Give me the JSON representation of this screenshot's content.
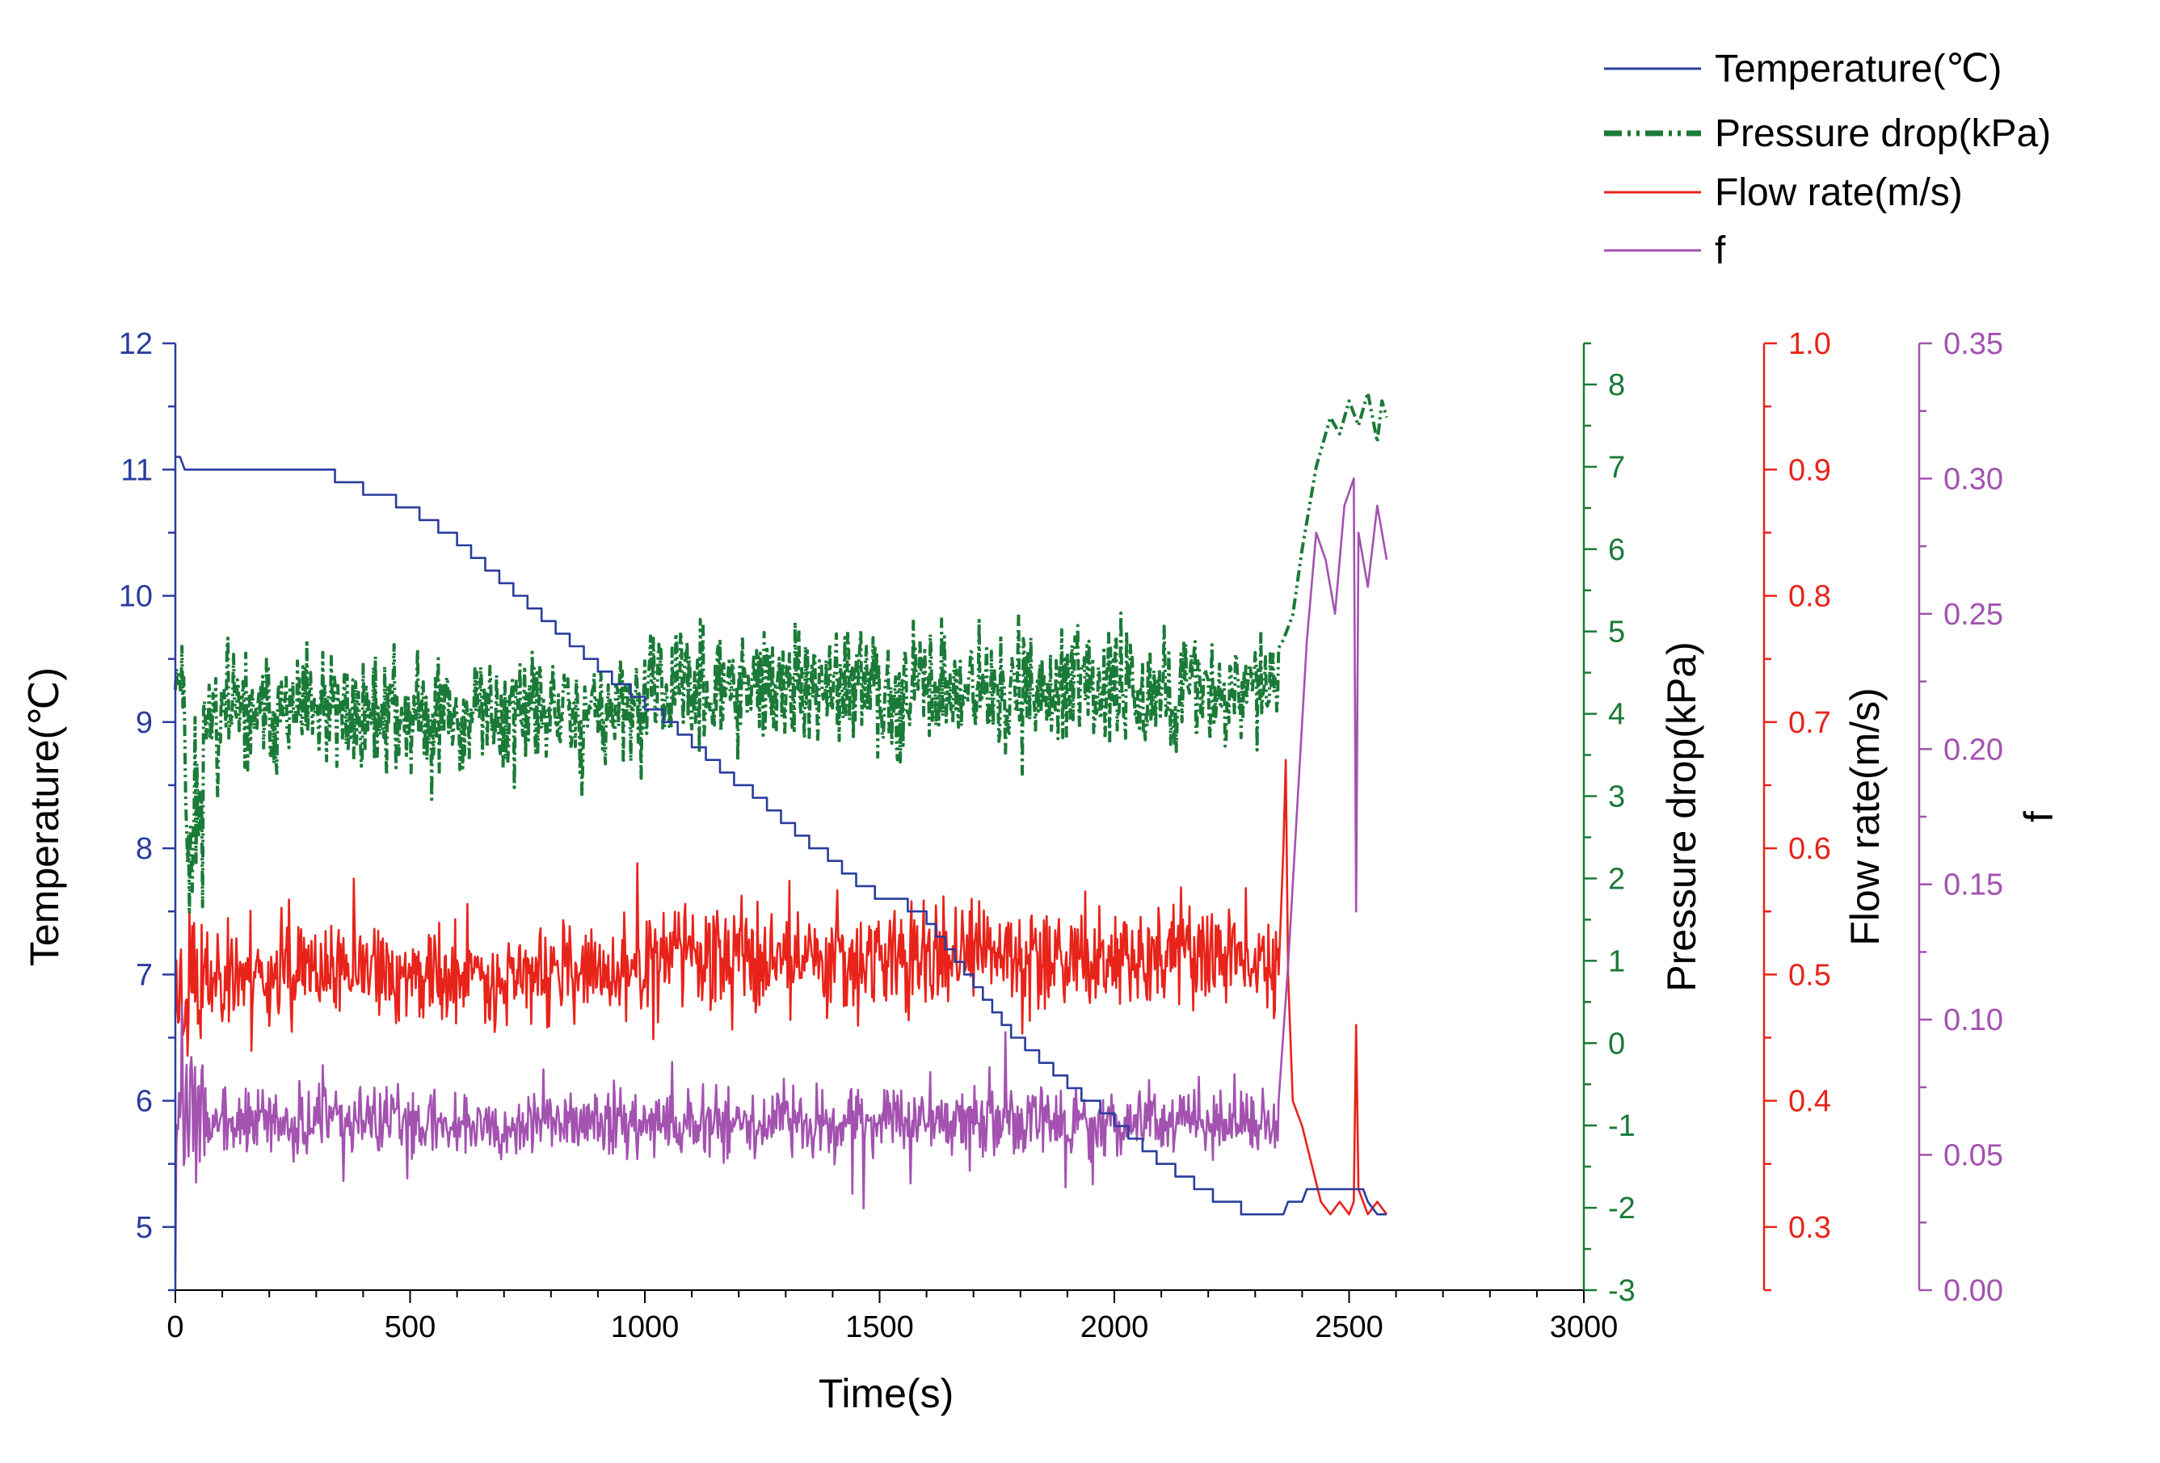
{
  "chart_data": {
    "type": "line",
    "x": {
      "label": "Time(s)",
      "range": [
        0,
        3000
      ],
      "ticks": [
        0,
        500,
        1000,
        1500,
        2000,
        2500,
        3000
      ]
    },
    "axes": [
      {
        "key": "temp",
        "label": "Temperature(℃)",
        "position": "left",
        "color": "#2a3d9e",
        "range": [
          4.5,
          12
        ],
        "ticks": [
          5,
          6,
          7,
          8,
          9,
          10,
          11,
          12
        ]
      },
      {
        "key": "dp",
        "label": "Pressure drop(kPa)",
        "position": "right-1",
        "color": "#1a7a37",
        "range": [
          -3,
          8.5
        ],
        "ticks": [
          -3,
          -2,
          -1,
          0,
          1,
          2,
          3,
          4,
          5,
          6,
          7,
          8
        ]
      },
      {
        "key": "flow",
        "label": "Flow rate(m/s)",
        "position": "right-2",
        "color": "#e8231a",
        "range": [
          0.25,
          1.0
        ],
        "ticks": [
          0.3,
          0.4,
          0.5,
          0.6,
          0.7,
          0.8,
          0.9,
          1.0
        ],
        "tick_labels": [
          "0.3",
          "0.4",
          "0.5",
          "0.6",
          "0.7",
          "0.8",
          "0.9",
          "1.0"
        ]
      },
      {
        "key": "f",
        "label": "f",
        "position": "right-3",
        "color": "#a352b0",
        "range": [
          0,
          0.35
        ],
        "ticks": [
          0,
          0.05,
          0.1,
          0.15,
          0.2,
          0.25,
          0.3,
          0.35
        ],
        "tick_labels": [
          "0.00",
          "0.05",
          "0.10",
          "0.15",
          "0.20",
          "0.25",
          "0.30",
          "0.35"
        ]
      }
    ],
    "legend": {
      "position": "top-right",
      "entries": [
        {
          "name": "Temperature(℃)",
          "color": "#2a3d9e",
          "style": "solid"
        },
        {
          "name": "Pressure drop(kPa)",
          "color": "#1a7a37",
          "style": "dash-dot-dot"
        },
        {
          "name": "Flow rate(m/s)",
          "color": "#e8231a",
          "style": "solid"
        },
        {
          "name": "f",
          "color": "#a352b0",
          "style": "solid"
        }
      ]
    },
    "series": [
      {
        "name": "Temperature(℃)",
        "axis": "temp",
        "kind": "step",
        "points": [
          [
            0,
            11.1
          ],
          [
            10,
            11.1
          ],
          [
            20,
            11.0
          ],
          [
            340,
            11.0
          ],
          [
            340,
            10.9
          ],
          [
            400,
            10.9
          ],
          [
            400,
            10.8
          ],
          [
            470,
            10.8
          ],
          [
            470,
            10.7
          ],
          [
            520,
            10.7
          ],
          [
            520,
            10.6
          ],
          [
            560,
            10.6
          ],
          [
            560,
            10.5
          ],
          [
            600,
            10.5
          ],
          [
            600,
            10.4
          ],
          [
            630,
            10.4
          ],
          [
            630,
            10.3
          ],
          [
            660,
            10.3
          ],
          [
            660,
            10.2
          ],
          [
            690,
            10.2
          ],
          [
            690,
            10.1
          ],
          [
            720,
            10.1
          ],
          [
            720,
            10.0
          ],
          [
            750,
            10.0
          ],
          [
            750,
            9.9
          ],
          [
            780,
            9.9
          ],
          [
            780,
            9.8
          ],
          [
            810,
            9.8
          ],
          [
            810,
            9.7
          ],
          [
            840,
            9.7
          ],
          [
            840,
            9.6
          ],
          [
            870,
            9.6
          ],
          [
            870,
            9.5
          ],
          [
            900,
            9.5
          ],
          [
            900,
            9.4
          ],
          [
            930,
            9.4
          ],
          [
            930,
            9.3
          ],
          [
            970,
            9.3
          ],
          [
            970,
            9.2
          ],
          [
            1000,
            9.2
          ],
          [
            1000,
            9.1
          ],
          [
            1040,
            9.1
          ],
          [
            1040,
            9.0
          ],
          [
            1070,
            9.0
          ],
          [
            1070,
            8.9
          ],
          [
            1100,
            8.9
          ],
          [
            1100,
            8.8
          ],
          [
            1130,
            8.8
          ],
          [
            1130,
            8.7
          ],
          [
            1160,
            8.7
          ],
          [
            1160,
            8.6
          ],
          [
            1190,
            8.6
          ],
          [
            1190,
            8.5
          ],
          [
            1230,
            8.5
          ],
          [
            1230,
            8.4
          ],
          [
            1260,
            8.4
          ],
          [
            1260,
            8.3
          ],
          [
            1290,
            8.3
          ],
          [
            1290,
            8.2
          ],
          [
            1320,
            8.2
          ],
          [
            1320,
            8.1
          ],
          [
            1350,
            8.1
          ],
          [
            1350,
            8.0
          ],
          [
            1390,
            8.0
          ],
          [
            1390,
            7.9
          ],
          [
            1420,
            7.9
          ],
          [
            1420,
            7.8
          ],
          [
            1450,
            7.8
          ],
          [
            1450,
            7.7
          ],
          [
            1490,
            7.7
          ],
          [
            1490,
            7.6
          ],
          [
            1560,
            7.6
          ],
          [
            1560,
            7.5
          ],
          [
            1600,
            7.5
          ],
          [
            1600,
            7.4
          ],
          [
            1620,
            7.4
          ],
          [
            1620,
            7.3
          ],
          [
            1640,
            7.3
          ],
          [
            1640,
            7.2
          ],
          [
            1660,
            7.2
          ],
          [
            1660,
            7.1
          ],
          [
            1680,
            7.1
          ],
          [
            1680,
            7.0
          ],
          [
            1700,
            7.0
          ],
          [
            1700,
            6.9
          ],
          [
            1720,
            6.9
          ],
          [
            1720,
            6.8
          ],
          [
            1740,
            6.8
          ],
          [
            1740,
            6.7
          ],
          [
            1760,
            6.7
          ],
          [
            1760,
            6.6
          ],
          [
            1780,
            6.6
          ],
          [
            1780,
            6.5
          ],
          [
            1810,
            6.5
          ],
          [
            1810,
            6.4
          ],
          [
            1840,
            6.4
          ],
          [
            1840,
            6.3
          ],
          [
            1870,
            6.3
          ],
          [
            1870,
            6.2
          ],
          [
            1900,
            6.2
          ],
          [
            1900,
            6.1
          ],
          [
            1930,
            6.1
          ],
          [
            1930,
            6.0
          ],
          [
            1970,
            6.0
          ],
          [
            1970,
            5.9
          ],
          [
            2000,
            5.9
          ],
          [
            2000,
            5.8
          ],
          [
            2030,
            5.8
          ],
          [
            2030,
            5.7
          ],
          [
            2060,
            5.7
          ],
          [
            2060,
            5.6
          ],
          [
            2090,
            5.6
          ],
          [
            2090,
            5.5
          ],
          [
            2130,
            5.5
          ],
          [
            2130,
            5.4
          ],
          [
            2170,
            5.4
          ],
          [
            2170,
            5.3
          ],
          [
            2210,
            5.3
          ],
          [
            2210,
            5.2
          ],
          [
            2270,
            5.2
          ],
          [
            2270,
            5.1
          ],
          [
            2340,
            5.1
          ],
          [
            2360,
            5.1
          ],
          [
            2370,
            5.2
          ],
          [
            2400,
            5.2
          ],
          [
            2410,
            5.3
          ],
          [
            2440,
            5.3
          ],
          [
            2450,
            5.3
          ],
          [
            2530,
            5.3
          ],
          [
            2540,
            5.2
          ],
          [
            2560,
            5.1
          ],
          [
            2580,
            5.1
          ]
        ]
      },
      {
        "name": "Pressure drop(kPa)",
        "axis": "dp",
        "kind": "noisy",
        "seed": 11,
        "segments": [
          {
            "t0": 0,
            "t1": 20,
            "base": 4.5,
            "amp": 0.5,
            "step": 2
          },
          {
            "t0": 20,
            "t1": 60,
            "base": 2.8,
            "amp": 1.6,
            "step": 2
          },
          {
            "t0": 60,
            "t1": 1000,
            "base": 4.0,
            "amp": 1.0,
            "step": 2
          },
          {
            "t0": 1000,
            "t1": 2350,
            "base": 4.3,
            "amp": 1.0,
            "step": 2
          }
        ],
        "tail": [
          [
            2350,
            4.8
          ],
          [
            2360,
            4.9
          ],
          [
            2380,
            5.2
          ],
          [
            2400,
            6.0
          ],
          [
            2430,
            7.0
          ],
          [
            2460,
            7.6
          ],
          [
            2480,
            7.4
          ],
          [
            2500,
            7.8
          ],
          [
            2520,
            7.5
          ],
          [
            2540,
            7.9
          ],
          [
            2560,
            7.3
          ],
          [
            2570,
            7.8
          ],
          [
            2580,
            7.6
          ]
        ]
      },
      {
        "name": "Flow rate(m/s)",
        "axis": "flow",
        "kind": "noisy",
        "seed": 23,
        "segments": [
          {
            "t0": 0,
            "t1": 60,
            "base": 0.49,
            "amp": 0.11,
            "step": 2
          },
          {
            "t0": 60,
            "t1": 1000,
            "base": 0.5,
            "amp": 0.055,
            "step": 2
          },
          {
            "t0": 1000,
            "t1": 2350,
            "base": 0.515,
            "amp": 0.06,
            "step": 2
          }
        ],
        "tail": [
          [
            2350,
            0.5
          ],
          [
            2360,
            0.6
          ],
          [
            2365,
            0.67
          ],
          [
            2370,
            0.5
          ],
          [
            2380,
            0.4
          ],
          [
            2400,
            0.38
          ],
          [
            2420,
            0.35
          ],
          [
            2440,
            0.32
          ],
          [
            2460,
            0.31
          ],
          [
            2480,
            0.32
          ],
          [
            2500,
            0.31
          ],
          [
            2510,
            0.32
          ],
          [
            2515,
            0.46
          ],
          [
            2520,
            0.33
          ],
          [
            2540,
            0.31
          ],
          [
            2560,
            0.32
          ],
          [
            2580,
            0.31
          ]
        ]
      },
      {
        "name": "f",
        "axis": "f",
        "kind": "noisy",
        "seed": 37,
        "segments": [
          {
            "t0": 0,
            "t1": 60,
            "base": 0.065,
            "amp": 0.045,
            "step": 2
          },
          {
            "t0": 60,
            "t1": 2350,
            "base": 0.062,
            "amp": 0.018,
            "step": 2
          }
        ],
        "tail": [
          [
            2350,
            0.07
          ],
          [
            2370,
            0.12
          ],
          [
            2390,
            0.18
          ],
          [
            2410,
            0.24
          ],
          [
            2430,
            0.28
          ],
          [
            2450,
            0.27
          ],
          [
            2470,
            0.25
          ],
          [
            2490,
            0.29
          ],
          [
            2510,
            0.3
          ],
          [
            2515,
            0.14
          ],
          [
            2520,
            0.28
          ],
          [
            2540,
            0.26
          ],
          [
            2560,
            0.29
          ],
          [
            2580,
            0.27
          ]
        ]
      }
    ]
  }
}
